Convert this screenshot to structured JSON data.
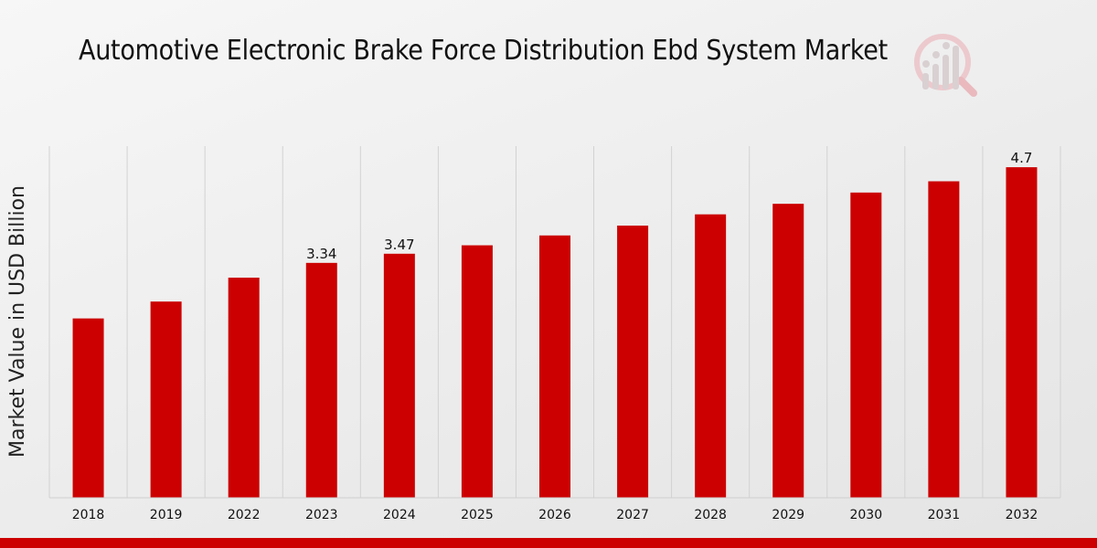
{
  "chart_data": {
    "type": "bar",
    "title": "Automotive Electronic Brake Force Distribution Ebd System Market",
    "xlabel": "",
    "ylabel": "Market Value in USD Billion",
    "categories": [
      "2018",
      "2019",
      "2022",
      "2023",
      "2024",
      "2025",
      "2026",
      "2027",
      "2028",
      "2029",
      "2030",
      "2031",
      "2032"
    ],
    "values": [
      2.55,
      2.79,
      3.13,
      3.34,
      3.47,
      3.59,
      3.73,
      3.87,
      4.03,
      4.18,
      4.34,
      4.5,
      4.7
    ],
    "data_labels": {
      "3": "3.34",
      "4": "3.47",
      "12": "4.7"
    },
    "ylim": [
      0,
      5.0
    ],
    "grid": "vertical",
    "bar_color": "#cc0000"
  },
  "colors": {
    "accent": "#cc0000",
    "logo": "#e8c8cc"
  }
}
